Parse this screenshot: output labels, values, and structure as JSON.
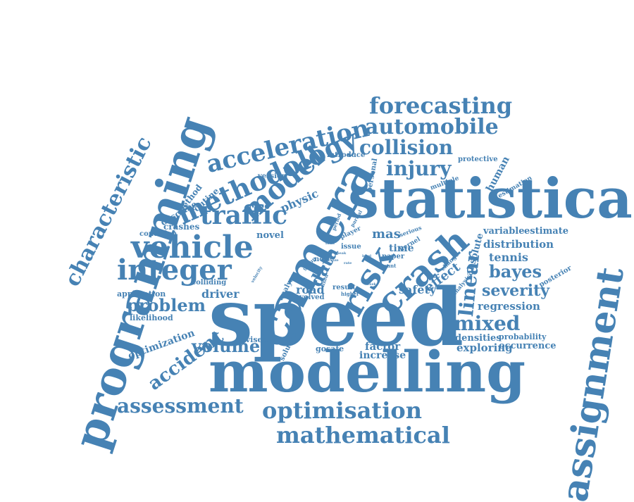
{
  "theme": {
    "word_color": "#4682b4",
    "background": "#ffffff"
  },
  "words": [
    {
      "text": "speed"
    },
    {
      "text": "modelling"
    },
    {
      "text": "statistical"
    },
    {
      "text": "programming"
    },
    {
      "text": "camera"
    },
    {
      "text": "assignment"
    },
    {
      "text": "risk"
    },
    {
      "text": "crash"
    },
    {
      "text": "vehicle"
    },
    {
      "text": "integer"
    },
    {
      "text": "traffic"
    },
    {
      "text": "methodology"
    },
    {
      "text": "model"
    },
    {
      "text": "acceleration"
    },
    {
      "text": "forecasting"
    },
    {
      "text": "automobile"
    },
    {
      "text": "collision"
    },
    {
      "text": "injury"
    },
    {
      "text": "characteristic"
    },
    {
      "text": "optimisation"
    },
    {
      "text": "mathematical"
    },
    {
      "text": "assessment"
    },
    {
      "text": "volume"
    },
    {
      "text": "problem"
    },
    {
      "text": "accident"
    },
    {
      "text": "mixed"
    },
    {
      "text": "bayes"
    },
    {
      "text": "severity"
    },
    {
      "text": "linear"
    },
    {
      "text": "data"
    },
    {
      "text": "tennis"
    },
    {
      "text": "distribution"
    },
    {
      "text": "regression"
    },
    {
      "text": "safety"
    },
    {
      "text": "effect"
    },
    {
      "text": "road"
    },
    {
      "text": "driver"
    },
    {
      "text": "physic"
    },
    {
      "text": "human"
    },
    {
      "text": "factor"
    },
    {
      "text": "increase"
    },
    {
      "text": "exploring"
    },
    {
      "text": "densities"
    },
    {
      "text": "occurrence"
    },
    {
      "text": "probability"
    },
    {
      "text": "gosafe"
    },
    {
      "text": "optimization"
    },
    {
      "text": "revised"
    },
    {
      "text": "solution"
    },
    {
      "text": "application"
    },
    {
      "text": "likelihood"
    },
    {
      "text": "colliding"
    },
    {
      "text": "crashes"
    },
    {
      "text": "condition"
    },
    {
      "text": "describe"
    },
    {
      "text": "method"
    },
    {
      "text": "routine"
    },
    {
      "text": "version"
    },
    {
      "text": "novel"
    },
    {
      "text": "mas"
    },
    {
      "text": "time"
    },
    {
      "text": "variable"
    },
    {
      "text": "estimate"
    },
    {
      "text": "posterior"
    },
    {
      "text": "absolute"
    },
    {
      "text": "protective"
    },
    {
      "text": "estimation"
    },
    {
      "text": "introduce"
    },
    {
      "text": "personal"
    },
    {
      "text": "multiple"
    },
    {
      "text": "paper"
    },
    {
      "text": "kernel"
    },
    {
      "text": "issue"
    },
    {
      "text": "note"
    },
    {
      "text": "result"
    },
    {
      "text": "involved"
    },
    {
      "text": "player"
    },
    {
      "text": "partial"
    },
    {
      "text": "serious"
    },
    {
      "text": "analyse"
    },
    {
      "text": "analysis"
    },
    {
      "text": "change"
    },
    {
      "text": "count"
    },
    {
      "text": "higher"
    },
    {
      "text": "period"
    },
    {
      "text": "fixed"
    },
    {
      "text": "group"
    },
    {
      "text": "velocity"
    },
    {
      "text": "fatal"
    },
    {
      "text": "peak"
    },
    {
      "text": "size"
    },
    {
      "text": "week"
    },
    {
      "text": "level"
    },
    {
      "text": "rate"
    }
  ]
}
